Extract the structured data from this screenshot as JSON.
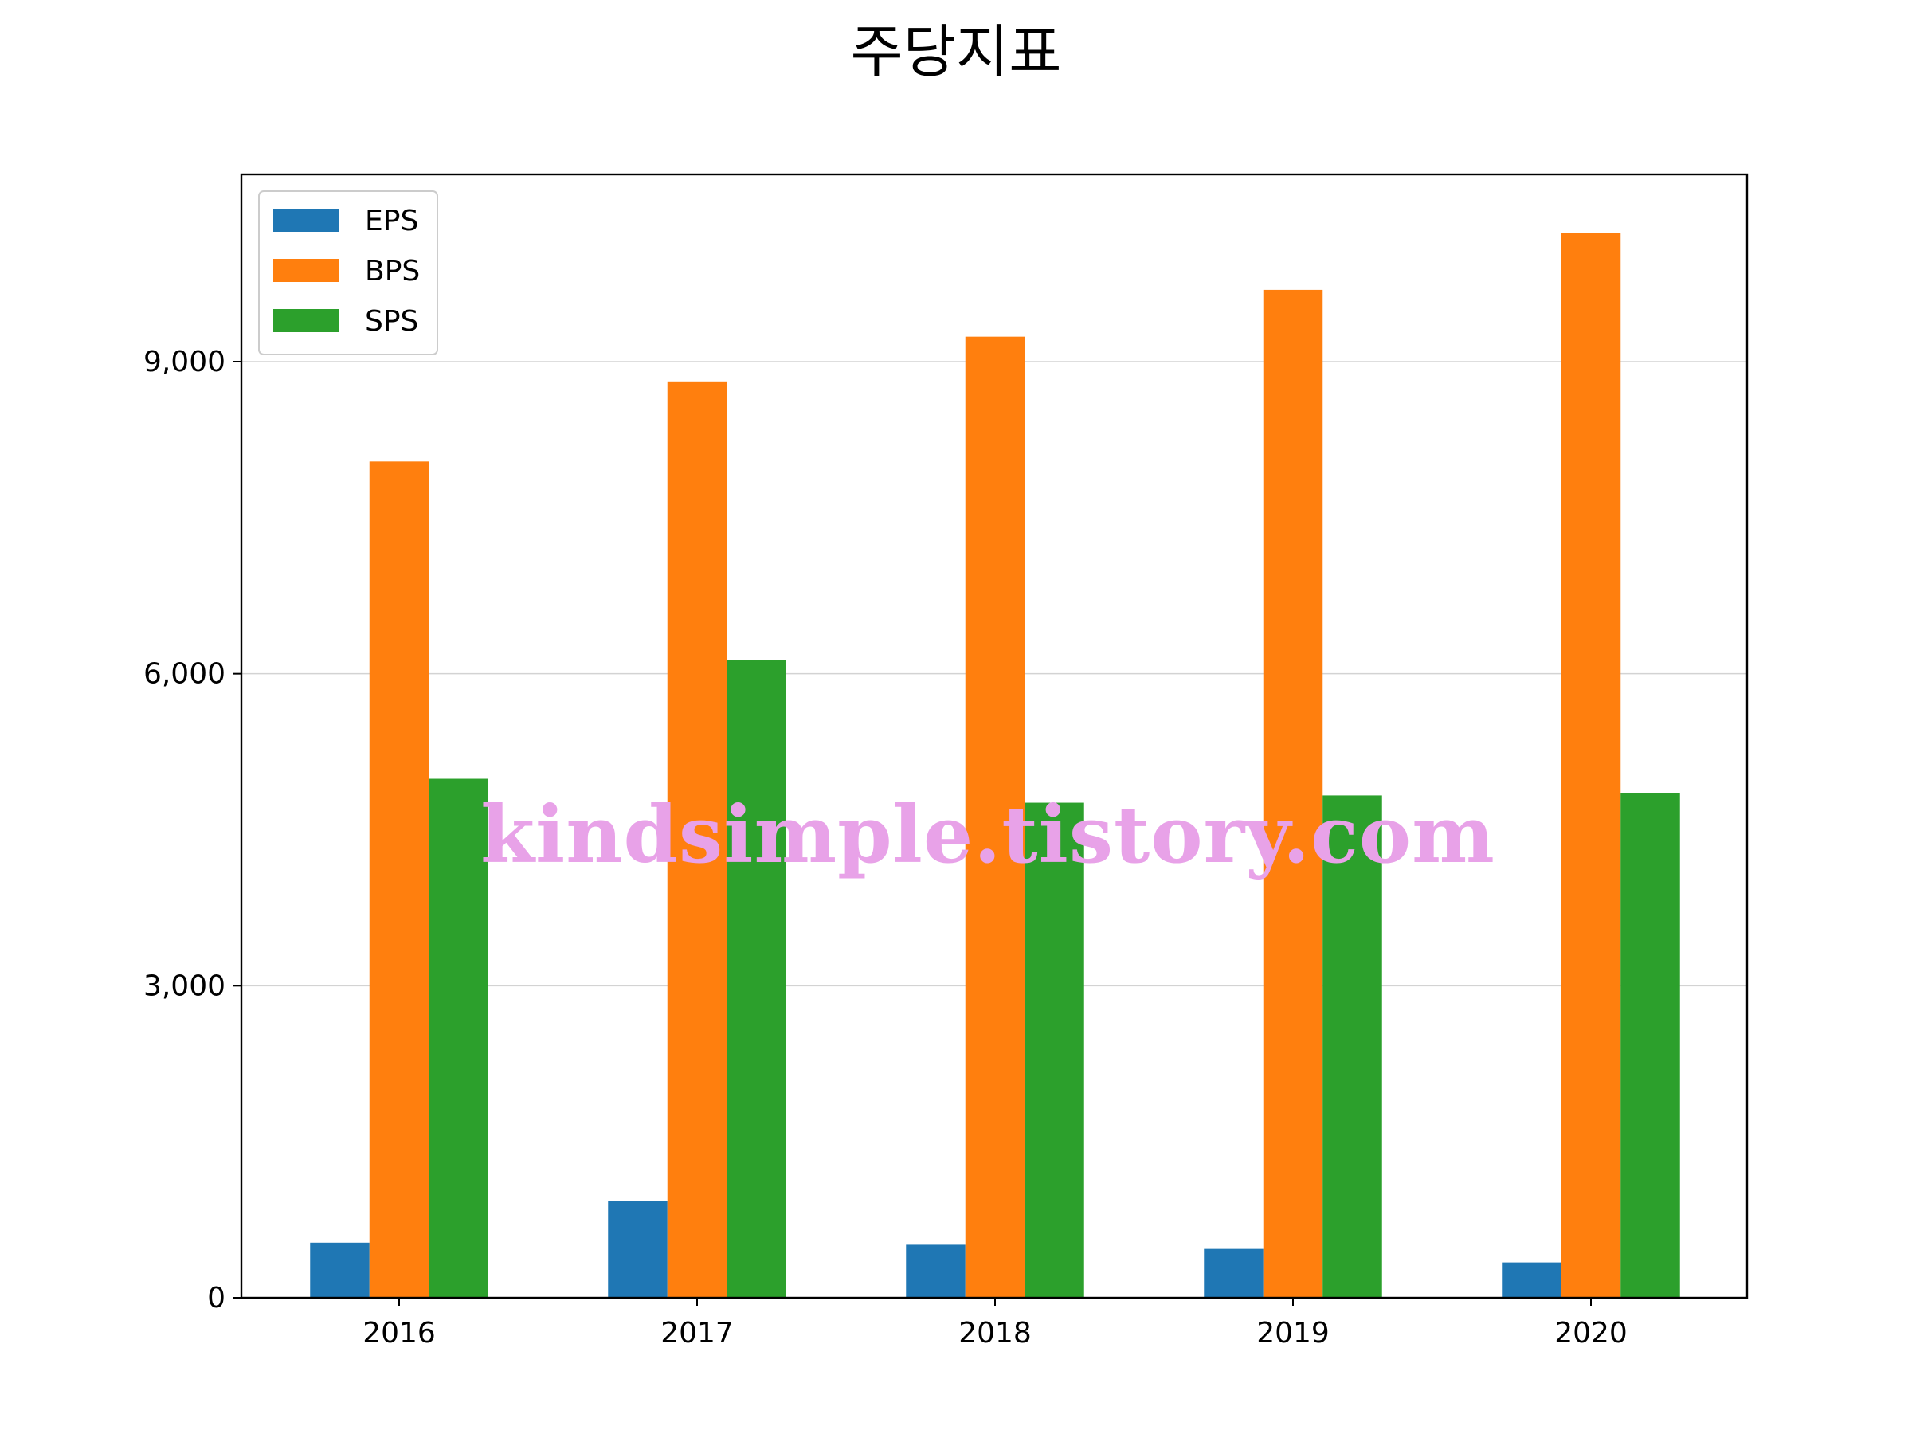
{
  "chart_data": {
    "type": "bar",
    "title": "주당지표",
    "xlabel": "",
    "ylabel": "",
    "categories": [
      "2016",
      "2017",
      "2018",
      "2019",
      "2020"
    ],
    "series": [
      {
        "name": "EPS",
        "color": "#1f77b4",
        "values": [
          530,
          930,
          510,
          470,
          340
        ]
      },
      {
        "name": "BPS",
        "color": "#ff7f0e",
        "values": [
          8040,
          8810,
          9240,
          9690,
          10240
        ]
      },
      {
        "name": "SPS",
        "color": "#2ca02c",
        "values": [
          4990,
          6130,
          4760,
          4830,
          4850
        ]
      }
    ],
    "ylim": [
      0,
      10800
    ],
    "yticks": [
      0,
      3000,
      6000,
      9000
    ],
    "ytick_labels": [
      "0",
      "3,000",
      "6,000",
      "9,000"
    ],
    "grid": "horizontal",
    "legend_position": "top-left"
  },
  "watermark": {
    "text": "kindsimple.tistory.com",
    "color": "#e8a2e8"
  }
}
